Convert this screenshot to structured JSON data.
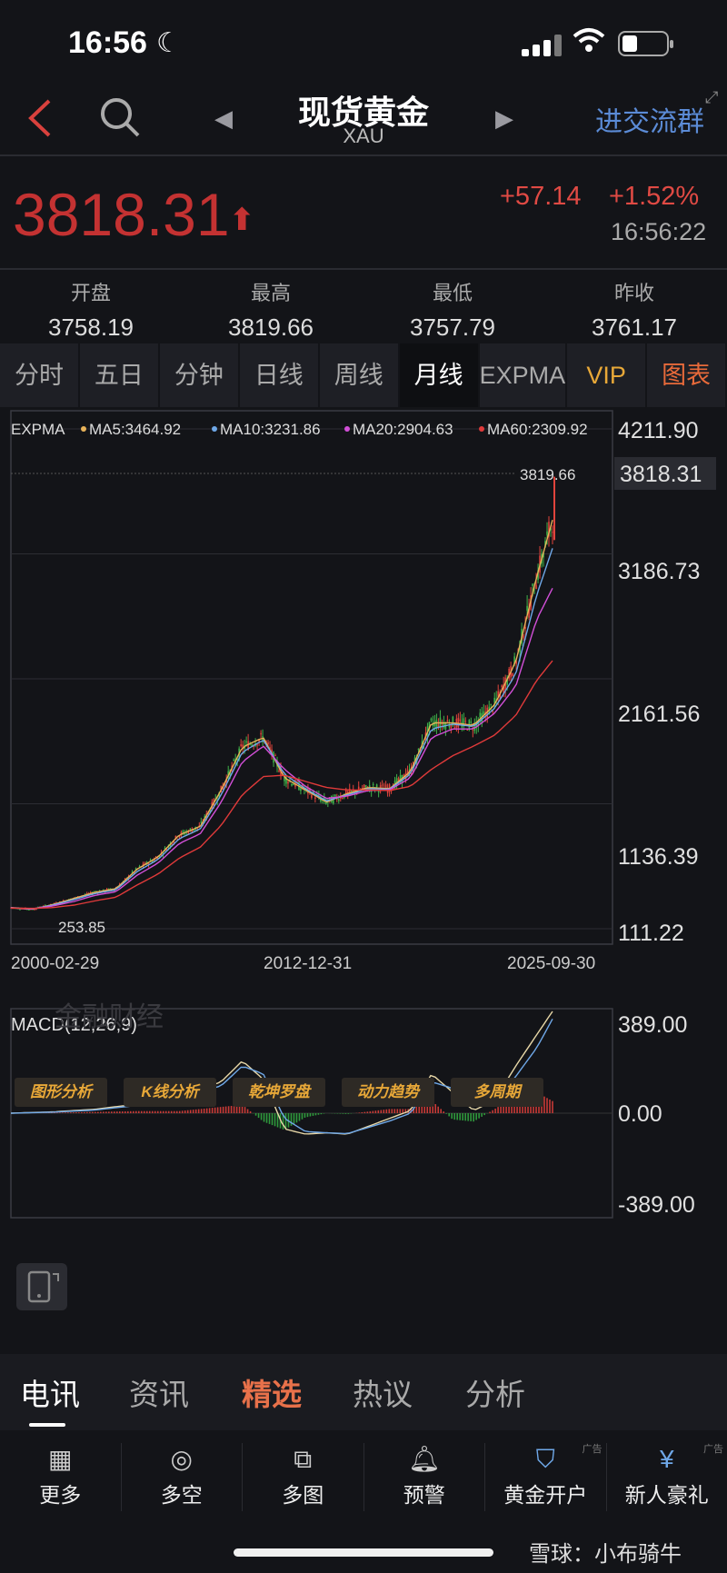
{
  "status_bar": {
    "time": "16:56"
  },
  "header": {
    "title": "现货黄金",
    "subtitle": "XAU",
    "join_group": "进交流群"
  },
  "quote": {
    "price": "3818.31",
    "change": "+57.14",
    "change_pct": "+1.52%",
    "time": "16:56:22",
    "up_color": "#c43232"
  },
  "stats": [
    {
      "label": "开盘",
      "value": "3758.19"
    },
    {
      "label": "最高",
      "value": "3819.66"
    },
    {
      "label": "最低",
      "value": "3757.79"
    },
    {
      "label": "昨收",
      "value": "3761.17"
    }
  ],
  "period_tabs": [
    "分时",
    "五日",
    "分钟",
    "日线",
    "周线",
    "月线",
    "EXPMA",
    "VIP",
    "图表"
  ],
  "active_period": "月线",
  "chart_data": [
    {
      "type": "line",
      "title": "EXPMA",
      "legend": [
        {
          "name": "MA5:3464.92",
          "color": "#e8b35a"
        },
        {
          "name": "MA10:3231.86",
          "color": "#6fa8e8"
        },
        {
          "name": "MA20:2904.63",
          "color": "#d24fd8"
        },
        {
          "name": "MA60:2309.92",
          "color": "#e03a3a"
        }
      ],
      "y_ticks": [
        "4211.90",
        "3186.73",
        "2161.56",
        "1136.39",
        "111.22"
      ],
      "ylim": [
        111.22,
        4211.9
      ],
      "current_value_label": "3818.31",
      "high_label": "3819.66",
      "low_label": "253.85",
      "x_ticks": [
        "2000-02-29",
        "2012-12-31",
        "2025-09-30"
      ],
      "x": [
        2000,
        2001,
        2002,
        2003,
        2004,
        2005,
        2006,
        2007,
        2008,
        2009,
        2010,
        2011,
        2012,
        2013,
        2014,
        2015,
        2016,
        2017,
        2018,
        2019,
        2020,
        2021,
        2022,
        2023,
        2024,
        2025,
        2025.75
      ],
      "series": [
        {
          "name": "MA5",
          "color": "#e8b35a",
          "values": [
            285,
            270,
            310,
            360,
            410,
            440,
            600,
            700,
            880,
            950,
            1250,
            1600,
            1680,
            1350,
            1250,
            1150,
            1220,
            1270,
            1260,
            1400,
            1800,
            1800,
            1780,
            1950,
            2300,
            3000,
            3464.92
          ]
        },
        {
          "name": "MA10",
          "color": "#6fa8e8",
          "values": [
            283,
            272,
            305,
            350,
            400,
            430,
            580,
            680,
            850,
            930,
            1210,
            1560,
            1660,
            1380,
            1260,
            1160,
            1210,
            1260,
            1255,
            1380,
            1750,
            1790,
            1770,
            1920,
            2200,
            2850,
            3231.86
          ]
        },
        {
          "name": "MA20",
          "color": "#d24fd8",
          "values": [
            282,
            274,
            298,
            335,
            385,
            415,
            550,
            650,
            810,
            890,
            1150,
            1480,
            1610,
            1420,
            1280,
            1180,
            1200,
            1245,
            1250,
            1350,
            1680,
            1750,
            1750,
            1880,
            2100,
            2650,
            2904.63
          ]
        },
        {
          "name": "MA60",
          "color": "#e03a3a",
          "values": [
            280,
            278,
            285,
            305,
            340,
            370,
            470,
            560,
            690,
            780,
            960,
            1210,
            1360,
            1370,
            1320,
            1270,
            1250,
            1250,
            1245,
            1280,
            1420,
            1530,
            1610,
            1700,
            1860,
            2150,
            2309.92
          ]
        }
      ]
    },
    {
      "type": "bar",
      "title": "MACD(12,26,9)",
      "y_ticks": [
        "389.00",
        "0.00",
        "-389.00"
      ],
      "ylim": [
        -389,
        389
      ],
      "x": [
        2000,
        2002,
        2004,
        2006,
        2008,
        2010,
        2011,
        2012,
        2013,
        2014,
        2015,
        2016,
        2018,
        2019,
        2020,
        2021,
        2022,
        2023,
        2024,
        2025,
        2025.75
      ],
      "series": [
        {
          "name": "DIF",
          "color": "#e8d8a8",
          "values": [
            0,
            5,
            15,
            35,
            60,
            120,
            200,
            130,
            -60,
            -80,
            -75,
            -80,
            -20,
            10,
            150,
            80,
            10,
            50,
            180,
            300,
            389
          ]
        },
        {
          "name": "DEA",
          "color": "#6fa8e8",
          "values": [
            0,
            4,
            12,
            30,
            55,
            105,
            180,
            150,
            -20,
            -70,
            -75,
            -78,
            -30,
            0,
            120,
            95,
            30,
            40,
            140,
            250,
            360
          ]
        }
      ]
    }
  ],
  "analysis_buttons": [
    "图形分析",
    "K线分析",
    "乾坤罗盘",
    "动力趋势",
    "多周期"
  ],
  "watermark": "金融财经",
  "news_tabs": [
    "电讯",
    "资讯",
    "精选",
    "热议",
    "分析"
  ],
  "toolbar": [
    {
      "label": "更多",
      "icon": "grid-icon",
      "ad": ""
    },
    {
      "label": "多空",
      "icon": "trend-icon",
      "ad": ""
    },
    {
      "label": "多图",
      "icon": "multi-chart-icon",
      "ad": ""
    },
    {
      "label": "预警",
      "icon": "bell-icon",
      "ad": ""
    },
    {
      "label": "黄金开户",
      "icon": "gold-account-icon",
      "ad": "广告"
    },
    {
      "label": "新人豪礼",
      "icon": "gift-icon",
      "ad": "广告"
    }
  ],
  "footer_brand": "雪球：小布骑牛"
}
